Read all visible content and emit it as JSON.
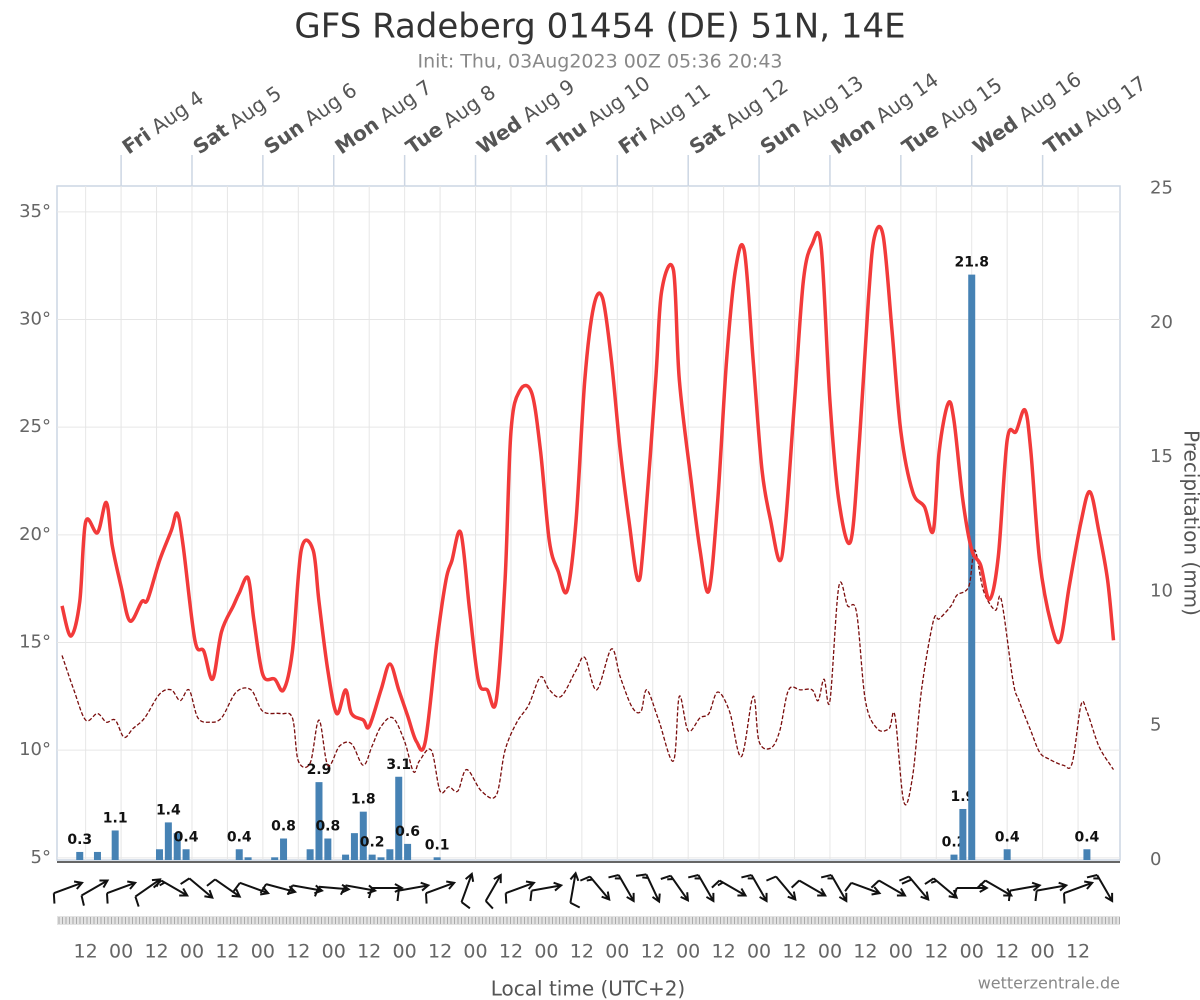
{
  "chart_data": {
    "type": "meteogram",
    "title": "GFS Radeberg 01454 (DE) 51N, 14E",
    "subtitle": "Init: Thu, 03Aug2023 00Z 05:36 20:43",
    "x_axis_label": "Local time (UTC+2)",
    "y2_axis_label": "Precipitation (mm)",
    "credit": "wetterzentrale.de",
    "xlim": [
      -21.7,
      338.2
    ],
    "xticks": [
      {
        "value": -12,
        "label": "12"
      },
      {
        "value": 0,
        "label": "00"
      },
      {
        "value": 12,
        "label": "12"
      },
      {
        "value": 24,
        "label": "00"
      },
      {
        "value": 36,
        "label": "12"
      },
      {
        "value": 48,
        "label": "00"
      },
      {
        "value": 60,
        "label": "12"
      },
      {
        "value": 72,
        "label": "00"
      },
      {
        "value": 84,
        "label": "12"
      },
      {
        "value": 96,
        "label": "00"
      },
      {
        "value": 108,
        "label": "12"
      },
      {
        "value": 120,
        "label": "00"
      },
      {
        "value": 132,
        "label": "12"
      },
      {
        "value": 144,
        "label": "00"
      },
      {
        "value": 156,
        "label": "12"
      },
      {
        "value": 168,
        "label": "00"
      },
      {
        "value": 180,
        "label": "12"
      },
      {
        "value": 192,
        "label": "00"
      },
      {
        "value": 204,
        "label": "12"
      },
      {
        "value": 216,
        "label": "00"
      },
      {
        "value": 228,
        "label": "12"
      },
      {
        "value": 240,
        "label": "00"
      },
      {
        "value": 252,
        "label": "12"
      },
      {
        "value": 264,
        "label": "00"
      },
      {
        "value": 276,
        "label": "12"
      },
      {
        "value": 288,
        "label": "00"
      },
      {
        "value": 300,
        "label": "12"
      },
      {
        "value": 312,
        "label": "00"
      },
      {
        "value": 324,
        "label": "12"
      }
    ],
    "top_ticks": [
      {
        "value": 0,
        "weekday": "Fri",
        "label": "Aug 4"
      },
      {
        "value": 24,
        "weekday": "Sat",
        "label": "Aug 5"
      },
      {
        "value": 48,
        "weekday": "Sun",
        "label": "Aug 6"
      },
      {
        "value": 72,
        "weekday": "Mon",
        "label": "Aug 7"
      },
      {
        "value": 96,
        "weekday": "Tue",
        "label": "Aug 8"
      },
      {
        "value": 120,
        "weekday": "Wed",
        "label": "Aug 9"
      },
      {
        "value": 144,
        "weekday": "Thu",
        "label": "Aug 10"
      },
      {
        "value": 168,
        "weekday": "Fri",
        "label": "Aug 11"
      },
      {
        "value": 192,
        "weekday": "Sat",
        "label": "Aug 12"
      },
      {
        "value": 216,
        "weekday": "Sun",
        "label": "Aug 13"
      },
      {
        "value": 240,
        "weekday": "Mon",
        "label": "Aug 14"
      },
      {
        "value": 264,
        "weekday": "Tue",
        "label": "Aug 15"
      },
      {
        "value": 288,
        "weekday": "Wed",
        "label": "Aug 16"
      },
      {
        "value": 312,
        "weekday": "Thu",
        "label": "Aug 17"
      }
    ],
    "ylim": [
      4.9,
      36.2
    ],
    "yticks": [
      {
        "value": 5,
        "label": "5°"
      },
      {
        "value": 10,
        "label": "10°"
      },
      {
        "value": 15,
        "label": "15°"
      },
      {
        "value": 20,
        "label": "20°"
      },
      {
        "value": 25,
        "label": "25°"
      },
      {
        "value": 30,
        "label": "30°"
      },
      {
        "value": 35,
        "label": "35°"
      }
    ],
    "y2lim": [
      0,
      25.1
    ],
    "y2ticks": [
      0,
      5,
      10,
      15,
      20,
      25
    ],
    "grid": true,
    "series": [
      {
        "color": "#f23a3a",
        "style": "solid",
        "x": [
          -20,
          -17,
          -14,
          -12,
          -8,
          -5,
          -3,
          0,
          3,
          7,
          9,
          13,
          17,
          19,
          21,
          25,
          28,
          31,
          34,
          38,
          40,
          43,
          45,
          48,
          52,
          55,
          58,
          61,
          65,
          67,
          70,
          73,
          76,
          78,
          82,
          84,
          88,
          91,
          94,
          97,
          100,
          103,
          107,
          110,
          112,
          115,
          118,
          121,
          124,
          127,
          130,
          132,
          135,
          139,
          142,
          145,
          148,
          151,
          154,
          157,
          160,
          163,
          166,
          169,
          172,
          175,
          177,
          181,
          183,
          187,
          189,
          193,
          196,
          199,
          202,
          205,
          208,
          211,
          214,
          217,
          220,
          223,
          225,
          228,
          231,
          234,
          237,
          240,
          243,
          247,
          250,
          253,
          255,
          258,
          261,
          264,
          268,
          272,
          275,
          277,
          280,
          282,
          285,
          288,
          291,
          294,
          297,
          300,
          303,
          306,
          308,
          311,
          315,
          318,
          321,
          325,
          328,
          331,
          334,
          336
        ],
        "values": [
          16.7,
          15.3,
          16.9,
          20.6,
          20.1,
          21.5,
          19.5,
          17.6,
          16.0,
          16.9,
          17.0,
          18.8,
          20.2,
          21.0,
          19.5,
          15.1,
          14.6,
          13.3,
          15.5,
          16.7,
          17.3,
          18.0,
          16.0,
          13.5,
          13.3,
          12.8,
          14.6,
          19.3,
          19.3,
          16.9,
          13.7,
          11.7,
          12.8,
          11.7,
          11.4,
          11.1,
          12.8,
          14.0,
          12.8,
          11.6,
          10.4,
          10.4,
          15.1,
          17.9,
          18.8,
          20.1,
          16.5,
          13.2,
          12.8,
          12.3,
          17.9,
          24.8,
          26.7,
          26.6,
          23.9,
          19.7,
          18.3,
          17.4,
          20.6,
          27.2,
          30.6,
          31.0,
          28.1,
          23.9,
          20.6,
          17.9,
          19.8,
          27.2,
          31.3,
          32.3,
          27.2,
          22.5,
          19.3,
          17.4,
          21.6,
          28.1,
          32.3,
          33.2,
          28.1,
          23.0,
          20.6,
          18.8,
          20.6,
          26.2,
          31.8,
          33.5,
          33.4,
          26.2,
          21.6,
          19.7,
          24.4,
          30.9,
          33.8,
          33.9,
          29.5,
          24.8,
          22.0,
          21.3,
          20.2,
          23.9,
          26.1,
          25.3,
          21.6,
          19.3,
          18.6,
          17.0,
          19.0,
          24.4,
          24.8,
          25.8,
          23.9,
          18.8,
          15.8,
          15.1,
          17.6,
          20.6,
          22.0,
          20.2,
          17.9,
          15.1
        ]
      },
      {
        "color": "#7a0d0d",
        "style": "dashed",
        "x": [
          -20,
          -16,
          -12,
          -8,
          -5,
          -2,
          1,
          4,
          8,
          13,
          17,
          20,
          23,
          26,
          30,
          34,
          39,
          44,
          48,
          54,
          58,
          60,
          64,
          67,
          70,
          74,
          78,
          82,
          85,
          88,
          92,
          96,
          99,
          101,
          105,
          108,
          111,
          114,
          117,
          122,
          127,
          130,
          134,
          138,
          142,
          145,
          149,
          154,
          157,
          161,
          166,
          169,
          173,
          176,
          178,
          182,
          187,
          189,
          192,
          196,
          199,
          202,
          206,
          210,
          214,
          216,
          220,
          223,
          226,
          230,
          234,
          236,
          238,
          240,
          243,
          246,
          249,
          252,
          256,
          260,
          262,
          265,
          268,
          271,
          275,
          277,
          281,
          283,
          287,
          289,
          292,
          296,
          298,
          302,
          304,
          308,
          311,
          314,
          319,
          322,
          325,
          327,
          331,
          335,
          336
        ],
        "values": [
          14.4,
          12.8,
          11.4,
          11.7,
          11.3,
          11.4,
          10.6,
          11.0,
          11.5,
          12.6,
          12.8,
          12.3,
          12.8,
          11.5,
          11.3,
          11.5,
          12.7,
          12.8,
          11.8,
          11.7,
          11.5,
          9.5,
          9.4,
          11.4,
          9.3,
          10.2,
          10.3,
          9.3,
          10.2,
          11.1,
          11.5,
          10.4,
          9.0,
          9.5,
          10.0,
          8.1,
          8.3,
          8.1,
          9.1,
          8.1,
          7.9,
          10.0,
          11.3,
          12.1,
          13.4,
          12.8,
          12.5,
          13.7,
          14.3,
          12.8,
          14.7,
          13.4,
          12.0,
          11.8,
          12.8,
          11.4,
          9.5,
          12.5,
          10.9,
          11.5,
          11.7,
          12.7,
          11.8,
          9.7,
          12.5,
          10.4,
          10.1,
          10.9,
          12.8,
          12.8,
          12.8,
          12.3,
          13.3,
          12.3,
          17.6,
          16.7,
          16.4,
          12.3,
          11.0,
          11.0,
          11.6,
          7.6,
          8.8,
          12.8,
          16.0,
          16.1,
          16.7,
          17.2,
          17.6,
          19.3,
          17.4,
          16.5,
          17.0,
          13.2,
          12.3,
          10.9,
          9.9,
          9.6,
          9.3,
          9.4,
          12.1,
          11.8,
          10.2,
          9.3,
          9.1
        ]
      }
    ],
    "precipitation": {
      "color": "#4682b4",
      "axis": "y2",
      "x": [
        -14,
        -8,
        -2,
        13,
        16,
        19,
        22,
        40,
        43,
        52,
        55,
        64,
        67,
        70,
        76,
        79,
        82,
        85,
        88,
        91,
        94,
        97,
        107,
        282,
        285,
        288,
        300,
        327
      ],
      "values": [
        0.3,
        0.3,
        1.1,
        0.4,
        1.4,
        1.0,
        0.4,
        0.4,
        0.1,
        0.1,
        0.8,
        0.4,
        2.9,
        0.8,
        0.2,
        1.0,
        1.8,
        0.2,
        0.1,
        0.4,
        3.1,
        0.6,
        0.1,
        0.2,
        1.9,
        21.8,
        0.4,
        0.4
      ],
      "value_labels": [
        "0.3",
        null,
        "1.1",
        null,
        "1.4",
        null,
        "0.4",
        "0.4",
        null,
        null,
        "0.8",
        null,
        "2.9",
        "0.8",
        null,
        null,
        "1.8",
        "0.2",
        null,
        null,
        "3.1",
        "0.6",
        "0.1",
        "0.2",
        "1.9",
        "21.8",
        "0.4",
        "0.4"
      ]
    },
    "wind": {
      "x": [
        -18,
        -9,
        0,
        9,
        18,
        27,
        36,
        45,
        54,
        63,
        72,
        81,
        90,
        99,
        108,
        117,
        126,
        135,
        144,
        153,
        162,
        171,
        180,
        189,
        198,
        207,
        216,
        225,
        234,
        243,
        252,
        261,
        270,
        279,
        288,
        297,
        306,
        315,
        324,
        333
      ],
      "direction": [
        250,
        240,
        250,
        235,
        300,
        310,
        305,
        290,
        285,
        280,
        275,
        280,
        270,
        260,
        250,
        200,
        210,
        250,
        260,
        190,
        320,
        330,
        335,
        325,
        330,
        300,
        330,
        320,
        300,
        330,
        290,
        300,
        320,
        310,
        270,
        300,
        260,
        260,
        250,
        330
      ],
      "speed": [
        10,
        10,
        10,
        10,
        15,
        10,
        10,
        10,
        10,
        10,
        10,
        10,
        10,
        10,
        10,
        10,
        10,
        10,
        10,
        10,
        15,
        15,
        15,
        15,
        15,
        15,
        15,
        10,
        10,
        15,
        10,
        10,
        20,
        15,
        10,
        10,
        10,
        10,
        10,
        15
      ]
    }
  }
}
